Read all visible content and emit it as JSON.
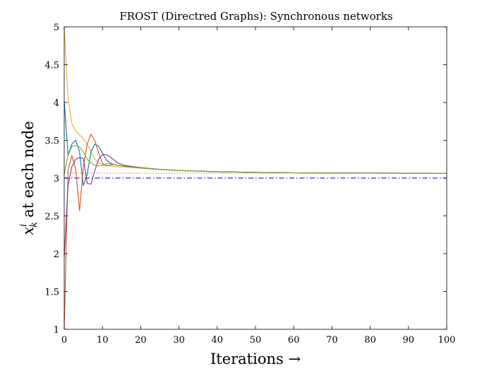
{
  "chart_data": {
    "type": "line",
    "title": "FROST (Directred Graphs): Synchronous networks",
    "xlabel": "Iterations →",
    "ylabel_main": "at each node",
    "ylabel_symbol": "x",
    "ylabel_superscript": "i",
    "ylabel_subscript": "k",
    "xlim": [
      0,
      100
    ],
    "ylim": [
      1,
      5
    ],
    "x_ticks": [
      0,
      10,
      20,
      30,
      40,
      50,
      60,
      70,
      80,
      90,
      100
    ],
    "y_ticks": [
      1,
      1.5,
      2,
      2.5,
      3,
      3.5,
      4,
      4.5,
      5
    ],
    "y_tick_labels": [
      "1",
      "1.5",
      "2",
      "2.5",
      "3",
      "3.5",
      "4",
      "4.5",
      "5"
    ],
    "grid": false,
    "series": [
      {
        "color": "#EDB120",
        "style": "solid",
        "points": [
          [
            0,
            5
          ],
          [
            1,
            4.05
          ],
          [
            2,
            3.72
          ],
          [
            3,
            3.62
          ],
          [
            4,
            3.57
          ],
          [
            5,
            3.52
          ],
          [
            6,
            3.45
          ],
          [
            7,
            3.35
          ],
          [
            8,
            3.25
          ],
          [
            9,
            3.2
          ],
          [
            10,
            3.18
          ],
          [
            11,
            3.17
          ],
          [
            12,
            3.16
          ],
          [
            14,
            3.15
          ],
          [
            16,
            3.145
          ],
          [
            20,
            3.13
          ],
          [
            25,
            3.115
          ],
          [
            30,
            3.1
          ],
          [
            40,
            3.085
          ],
          [
            50,
            3.075
          ],
          [
            60,
            3.07
          ],
          [
            70,
            3.068
          ],
          [
            80,
            3.066
          ],
          [
            90,
            3.065
          ],
          [
            100,
            3.065
          ]
        ]
      },
      {
        "color": "#0072BD",
        "style": "solid",
        "points": [
          [
            0,
            4.02
          ],
          [
            1,
            3.3
          ],
          [
            2,
            3.45
          ],
          [
            3,
            3.5
          ],
          [
            4,
            3.35
          ],
          [
            5,
            2.9
          ],
          [
            6,
            3.05
          ],
          [
            7,
            3.35
          ],
          [
            8,
            3.45
          ],
          [
            9,
            3.42
          ],
          [
            10,
            3.33
          ],
          [
            11,
            3.24
          ],
          [
            12,
            3.2
          ],
          [
            13,
            3.18
          ],
          [
            14,
            3.17
          ],
          [
            16,
            3.155
          ],
          [
            20,
            3.135
          ],
          [
            25,
            3.115
          ],
          [
            30,
            3.1
          ],
          [
            40,
            3.085
          ],
          [
            50,
            3.075
          ],
          [
            60,
            3.07
          ],
          [
            70,
            3.068
          ],
          [
            80,
            3.066
          ],
          [
            90,
            3.065
          ],
          [
            100,
            3.065
          ]
        ]
      },
      {
        "color": "#D95319",
        "style": "solid",
        "points": [
          [
            0,
            1
          ],
          [
            1,
            3.1
          ],
          [
            2,
            3.3
          ],
          [
            3,
            3.12
          ],
          [
            4,
            2.57
          ],
          [
            5,
            3.15
          ],
          [
            6,
            3.45
          ],
          [
            7,
            3.58
          ],
          [
            8,
            3.5
          ],
          [
            9,
            3.33
          ],
          [
            10,
            3.2
          ],
          [
            11,
            3.16
          ],
          [
            12,
            3.17
          ],
          [
            13,
            3.18
          ],
          [
            14,
            3.17
          ],
          [
            16,
            3.155
          ],
          [
            20,
            3.135
          ],
          [
            25,
            3.115
          ],
          [
            30,
            3.1
          ],
          [
            40,
            3.085
          ],
          [
            50,
            3.075
          ],
          [
            60,
            3.07
          ],
          [
            70,
            3.068
          ],
          [
            80,
            3.066
          ],
          [
            90,
            3.065
          ],
          [
            100,
            3.065
          ]
        ]
      },
      {
        "color": "#7E2F8E",
        "style": "solid",
        "points": [
          [
            0,
            1.95
          ],
          [
            1,
            2.9
          ],
          [
            2,
            3.15
          ],
          [
            3,
            3.25
          ],
          [
            4,
            3.27
          ],
          [
            5,
            3.26
          ],
          [
            6,
            2.93
          ],
          [
            7,
            2.92
          ],
          [
            8,
            3.1
          ],
          [
            9,
            3.25
          ],
          [
            10,
            3.31
          ],
          [
            11,
            3.31
          ],
          [
            12,
            3.28
          ],
          [
            13,
            3.24
          ],
          [
            14,
            3.2
          ],
          [
            16,
            3.165
          ],
          [
            20,
            3.14
          ],
          [
            25,
            3.115
          ],
          [
            30,
            3.1
          ],
          [
            40,
            3.085
          ],
          [
            50,
            3.075
          ],
          [
            60,
            3.07
          ],
          [
            70,
            3.068
          ],
          [
            80,
            3.066
          ],
          [
            90,
            3.065
          ],
          [
            100,
            3.065
          ]
        ]
      },
      {
        "color": "#77AC30",
        "style": "solid",
        "points": [
          [
            0,
            3.05
          ],
          [
            1,
            3.3
          ],
          [
            2,
            3.42
          ],
          [
            3,
            3.43
          ],
          [
            4,
            3.41
          ],
          [
            5,
            3.35
          ],
          [
            6,
            3.25
          ],
          [
            7,
            3.2
          ],
          [
            8,
            3.17
          ],
          [
            9,
            3.16
          ],
          [
            10,
            3.17
          ],
          [
            11,
            3.19
          ],
          [
            12,
            3.19
          ],
          [
            13,
            3.18
          ],
          [
            14,
            3.17
          ],
          [
            16,
            3.155
          ],
          [
            20,
            3.135
          ],
          [
            25,
            3.115
          ],
          [
            30,
            3.1
          ],
          [
            40,
            3.085
          ],
          [
            50,
            3.075
          ],
          [
            60,
            3.07
          ],
          [
            70,
            3.068
          ],
          [
            80,
            3.066
          ],
          [
            90,
            3.065
          ],
          [
            100,
            3.065
          ]
        ]
      },
      {
        "color": "#D95319",
        "style": "dotted",
        "points": [
          [
            0,
            3.065
          ],
          [
            100,
            3.065
          ]
        ]
      },
      {
        "color": "#2A2AF0",
        "style": "dashdot",
        "points": [
          [
            0,
            3.0
          ],
          [
            100,
            3.0
          ]
        ]
      }
    ]
  }
}
